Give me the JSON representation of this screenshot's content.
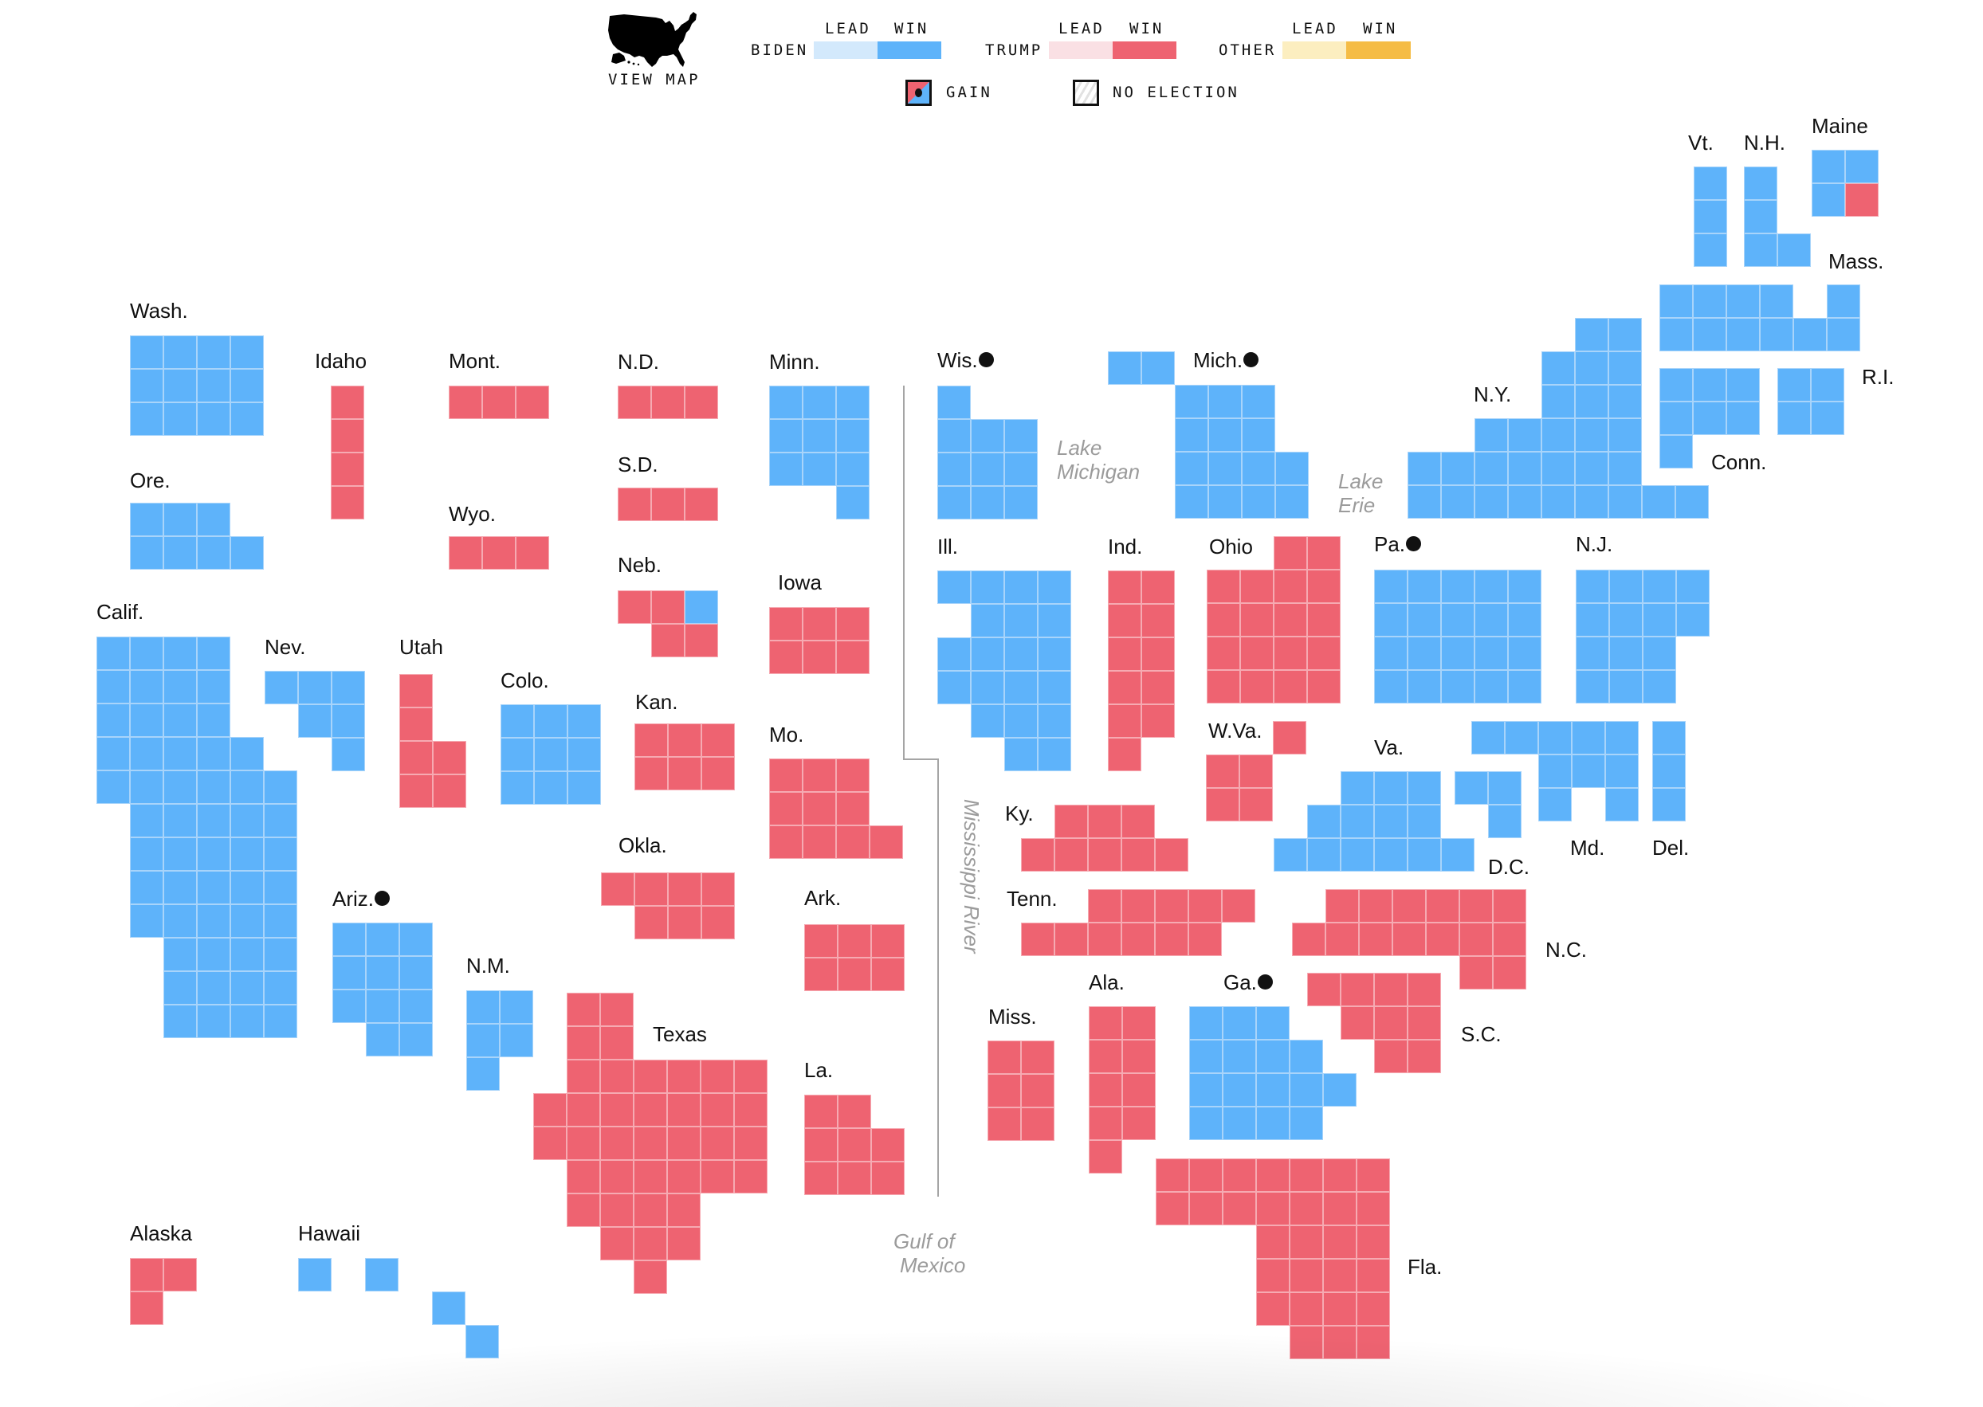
{
  "legend": {
    "view_map_label": "VIEW MAP",
    "lead_label": "LEAD",
    "win_label": "WIN",
    "candidates": [
      {
        "key": "biden",
        "name": "BIDEN",
        "lead_color": "#D3E9FC",
        "win_color": "#5EB3FA",
        "cell_border": "#A8D4FA"
      },
      {
        "key": "trump",
        "name": "TRUMP",
        "lead_color": "#FAE0E4",
        "win_color": "#EE6371",
        "cell_border": "#F6AAB2"
      },
      {
        "key": "other",
        "name": "OTHER",
        "lead_color": "#FCEEC0",
        "win_color": "#F5BC45",
        "cell_border": "#F9D88F"
      }
    ],
    "gain_label": "GAIN",
    "no_election_label": "NO ELECTION"
  },
  "annotations": {
    "lake_michigan": [
      "Lake",
      "Michigan"
    ],
    "lake_erie": [
      "Lake",
      "Erie"
    ],
    "mississippi_river": "Mississippi River",
    "gulf_of_mexico": [
      "Gulf of",
      "Mexico"
    ]
  },
  "states": [
    {
      "id": "wa",
      "label": "Wash.",
      "electoral_votes": 12,
      "winner": "biden",
      "gain": false
    },
    {
      "id": "or",
      "label": "Ore.",
      "electoral_votes": 7,
      "winner": "biden",
      "gain": false
    },
    {
      "id": "ca",
      "label": "Calif.",
      "electoral_votes": 55,
      "winner": "biden",
      "gain": false
    },
    {
      "id": "id",
      "label": "Idaho",
      "electoral_votes": 4,
      "winner": "trump",
      "gain": false
    },
    {
      "id": "mt",
      "label": "Mont.",
      "electoral_votes": 3,
      "winner": "trump",
      "gain": false
    },
    {
      "id": "wy",
      "label": "Wyo.",
      "electoral_votes": 3,
      "winner": "trump",
      "gain": false
    },
    {
      "id": "nv",
      "label": "Nev.",
      "electoral_votes": 6,
      "winner": "biden",
      "gain": false
    },
    {
      "id": "ut",
      "label": "Utah",
      "electoral_votes": 6,
      "winner": "trump",
      "gain": false
    },
    {
      "id": "co",
      "label": "Colo.",
      "electoral_votes": 9,
      "winner": "biden",
      "gain": false
    },
    {
      "id": "az",
      "label": "Ariz.",
      "electoral_votes": 11,
      "winner": "biden",
      "gain": true
    },
    {
      "id": "nm",
      "label": "N.M.",
      "electoral_votes": 5,
      "winner": "biden",
      "gain": false
    },
    {
      "id": "nd",
      "label": "N.D.",
      "electoral_votes": 3,
      "winner": "trump",
      "gain": false
    },
    {
      "id": "sd",
      "label": "S.D.",
      "electoral_votes": 3,
      "winner": "trump",
      "gain": false
    },
    {
      "id": "ne",
      "label": "Neb.",
      "electoral_votes": 5,
      "winner": "trump",
      "gain": false,
      "cells": [
        "trump",
        "trump",
        "biden",
        "trump",
        "trump"
      ]
    },
    {
      "id": "ks",
      "label": "Kan.",
      "electoral_votes": 6,
      "winner": "trump",
      "gain": false
    },
    {
      "id": "ok",
      "label": "Okla.",
      "electoral_votes": 7,
      "winner": "trump",
      "gain": false
    },
    {
      "id": "tx",
      "label": "Texas",
      "electoral_votes": 38,
      "winner": "trump",
      "gain": false
    },
    {
      "id": "mn",
      "label": "Minn.",
      "electoral_votes": 10,
      "winner": "biden",
      "gain": false
    },
    {
      "id": "ia",
      "label": "Iowa",
      "electoral_votes": 6,
      "winner": "trump",
      "gain": false
    },
    {
      "id": "mo",
      "label": "Mo.",
      "electoral_votes": 10,
      "winner": "trump",
      "gain": false
    },
    {
      "id": "ar",
      "label": "Ark.",
      "electoral_votes": 6,
      "winner": "trump",
      "gain": false
    },
    {
      "id": "la",
      "label": "La.",
      "electoral_votes": 8,
      "winner": "trump",
      "gain": false
    },
    {
      "id": "wi",
      "label": "Wis.",
      "electoral_votes": 10,
      "winner": "biden",
      "gain": true
    },
    {
      "id": "il",
      "label": "Ill.",
      "electoral_votes": 20,
      "winner": "biden",
      "gain": false
    },
    {
      "id": "mi",
      "label": "Mich.",
      "electoral_votes": 16,
      "winner": "biden",
      "gain": true
    },
    {
      "id": "in",
      "label": "Ind.",
      "electoral_votes": 11,
      "winner": "trump",
      "gain": false
    },
    {
      "id": "oh",
      "label": "Ohio",
      "electoral_votes": 18,
      "winner": "trump",
      "gain": false
    },
    {
      "id": "ky",
      "label": "Ky.",
      "electoral_votes": 8,
      "winner": "trump",
      "gain": false
    },
    {
      "id": "tn",
      "label": "Tenn.",
      "electoral_votes": 11,
      "winner": "trump",
      "gain": false
    },
    {
      "id": "wv",
      "label": "W.Va.",
      "electoral_votes": 5,
      "winner": "trump",
      "gain": false
    },
    {
      "id": "va",
      "label": "Va.",
      "electoral_votes": 13,
      "winner": "biden",
      "gain": false
    },
    {
      "id": "dc",
      "label": "D.C.",
      "electoral_votes": 3,
      "winner": "biden",
      "gain": false
    },
    {
      "id": "md",
      "label": "Md.",
      "electoral_votes": 10,
      "winner": "biden",
      "gain": false
    },
    {
      "id": "de",
      "label": "Del.",
      "electoral_votes": 3,
      "winner": "biden",
      "gain": false
    },
    {
      "id": "pa",
      "label": "Pa.",
      "electoral_votes": 20,
      "winner": "biden",
      "gain": true
    },
    {
      "id": "nj",
      "label": "N.J.",
      "electoral_votes": 14,
      "winner": "biden",
      "gain": false
    },
    {
      "id": "ny",
      "label": "N.Y.",
      "electoral_votes": 29,
      "winner": "biden",
      "gain": false
    },
    {
      "id": "ct",
      "label": "Conn.",
      "electoral_votes": 7,
      "winner": "biden",
      "gain": false
    },
    {
      "id": "ri",
      "label": "R.I.",
      "electoral_votes": 4,
      "winner": "biden",
      "gain": false
    },
    {
      "id": "ma",
      "label": "Mass.",
      "electoral_votes": 11,
      "winner": "biden",
      "gain": false
    },
    {
      "id": "vt",
      "label": "Vt.",
      "electoral_votes": 3,
      "winner": "biden",
      "gain": false
    },
    {
      "id": "nh",
      "label": "N.H.",
      "electoral_votes": 4,
      "winner": "biden",
      "gain": false
    },
    {
      "id": "me",
      "label": "Maine",
      "electoral_votes": 4,
      "winner": "biden",
      "gain": false,
      "cells": [
        "biden",
        "biden",
        "biden",
        "trump"
      ]
    },
    {
      "id": "nc",
      "label": "N.C.",
      "electoral_votes": 15,
      "winner": "trump",
      "gain": false
    },
    {
      "id": "sc",
      "label": "S.C.",
      "electoral_votes": 9,
      "winner": "trump",
      "gain": false
    },
    {
      "id": "ga",
      "label": "Ga.",
      "electoral_votes": 16,
      "winner": "biden",
      "gain": true
    },
    {
      "id": "al",
      "label": "Ala.",
      "electoral_votes": 9,
      "winner": "trump",
      "gain": false
    },
    {
      "id": "ms",
      "label": "Miss.",
      "electoral_votes": 6,
      "winner": "trump",
      "gain": false
    },
    {
      "id": "fl",
      "label": "Fla.",
      "electoral_votes": 29,
      "winner": "trump",
      "gain": false
    },
    {
      "id": "ak",
      "label": "Alaska",
      "electoral_votes": 3,
      "winner": "trump",
      "gain": false
    },
    {
      "id": "hi",
      "label": "Hawaii",
      "electoral_votes": 4,
      "winner": "biden",
      "gain": false
    }
  ]
}
